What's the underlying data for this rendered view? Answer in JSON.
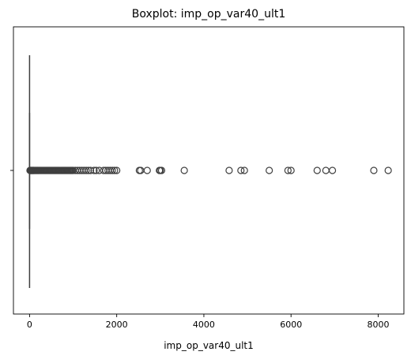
{
  "chart_data": {
    "type": "boxplot",
    "title": "Boxplot: imp_op_var40_ult1",
    "xlabel": "imp_op_var40_ult1",
    "ylabel": "",
    "orientation": "horizontal",
    "xlim": [
      -370,
      8590
    ],
    "xticks": [
      0,
      2000,
      4000,
      6000,
      8000
    ],
    "xtick_labels": [
      "0",
      "2000",
      "4000",
      "6000",
      "8000"
    ],
    "yticks": [
      ""
    ],
    "box": {
      "min": 0,
      "q1": 0,
      "median": 0,
      "q3": 0,
      "max": 0
    },
    "outliers": [
      10,
      20,
      30,
      40,
      50,
      60,
      70,
      80,
      90,
      100,
      115,
      130,
      145,
      160,
      175,
      190,
      205,
      220,
      240,
      260,
      280,
      300,
      320,
      340,
      360,
      380,
      400,
      420,
      440,
      460,
      480,
      500,
      520,
      540,
      560,
      580,
      600,
      620,
      640,
      660,
      680,
      700,
      720,
      740,
      760,
      780,
      800,
      820,
      840,
      860,
      880,
      900,
      920,
      940,
      960,
      980,
      1000,
      1050,
      1100,
      1150,
      1200,
      1250,
      1300,
      1350,
      1400,
      1480,
      1530,
      1600,
      1700,
      1750,
      1800,
      1850,
      1900,
      1950,
      2000,
      2520,
      2550,
      2700,
      2980,
      3000,
      3030,
      3550,
      4580,
      4850,
      4930,
      5500,
      5930,
      6000,
      6600,
      6800,
      6950,
      7900,
      8230
    ],
    "grid": false,
    "colors": {
      "box_edge": "#3f3f3f",
      "outlier_edge": "#3f3f3f",
      "axis": "#000000"
    }
  }
}
